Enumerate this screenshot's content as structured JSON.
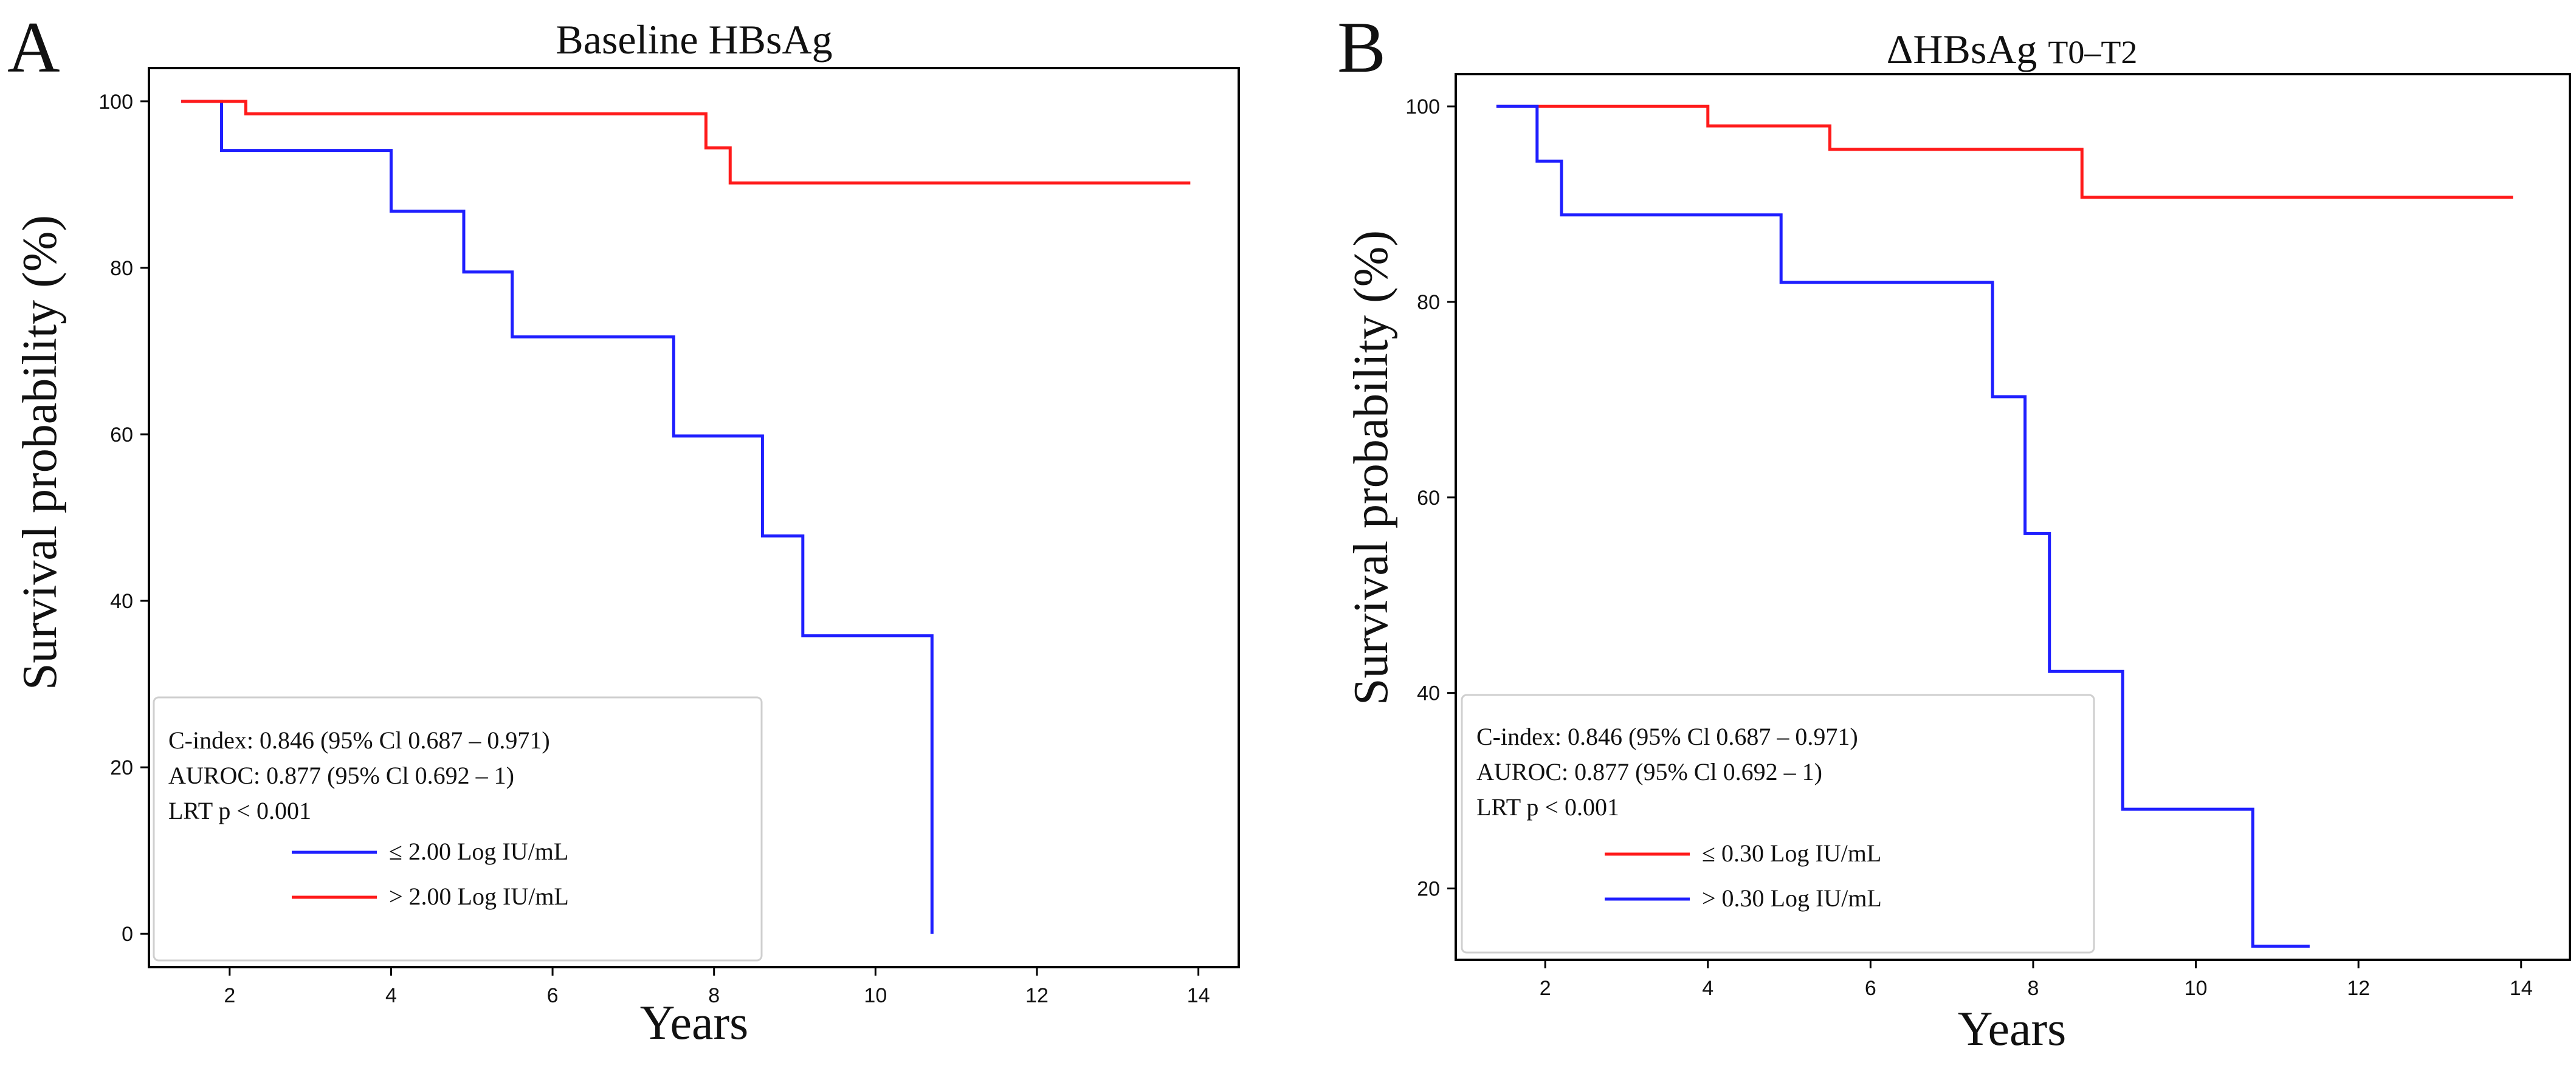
{
  "chart_data": [
    {
      "panel": "A",
      "type": "line",
      "step": true,
      "title": "Baseline HBsAg",
      "title_sub": "",
      "xlabel": "Years",
      "ylabel": "Survival probability (%)",
      "xlim": [
        1.0,
        14.5
      ],
      "ylim": [
        -4,
        104
      ],
      "xticks": [
        2,
        4,
        6,
        8,
        10,
        12,
        14
      ],
      "yticks": [
        0,
        20,
        40,
        60,
        80,
        100
      ],
      "grid": false,
      "legend_placement": "bottom-left",
      "stats": [
        "C-index: 0.846 (95% Cl 0.687 – 0.971)",
        "AUROC: 0.877 (95% Cl 0.692 – 1)",
        "LRT p < 0.001"
      ],
      "series": [
        {
          "name": "≤ 2.00 Log IU/mL",
          "color": "#1f1fff",
          "x": [
            1.4,
            1.9,
            4.0,
            4.9,
            5.5,
            7.5,
            8.6,
            9.1,
            10.7,
            10.7
          ],
          "y": [
            100,
            94.1,
            86.8,
            79.5,
            71.7,
            59.8,
            47.8,
            35.8,
            35.8,
            0
          ]
        },
        {
          "name": "> 2.00 Log IU/mL",
          "color": "#ff1a1a",
          "x": [
            1.4,
            2.2,
            7.9,
            8.2,
            13.9
          ],
          "y": [
            100,
            98.5,
            94.4,
            90.2,
            90.2
          ]
        }
      ]
    },
    {
      "panel": "B",
      "type": "line",
      "step": true,
      "title": "ΔHBsAg",
      "title_sub": "T0–T2",
      "xlabel": "Years",
      "ylabel": "Survival probability (%)",
      "xlim": [
        0.9,
        14.6
      ],
      "ylim": [
        12.7,
        103.3
      ],
      "xticks": [
        2,
        4,
        6,
        8,
        10,
        12,
        14
      ],
      "yticks": [
        20,
        40,
        60,
        80,
        100
      ],
      "grid": false,
      "legend_placement": "bottom-left",
      "stats": [
        "C-index: 0.846 (95% Cl 0.687 – 0.971)",
        "AUROC: 0.877 (95% Cl 0.692 – 1)",
        "LRT p < 0.001"
      ],
      "series": [
        {
          "name": "≤ 0.30 Log IU/mL",
          "color": "#ff1a1a",
          "x": [
            1.4,
            4.0,
            5.5,
            8.6,
            13.9
          ],
          "y": [
            100,
            98.0,
            95.6,
            90.7,
            90.7
          ]
        },
        {
          "name": "> 0.30 Log IU/mL",
          "color": "#1f1fff",
          "x": [
            1.4,
            1.9,
            2.2,
            4.9,
            7.5,
            7.9,
            8.2,
            9.1,
            10.7,
            11.4
          ],
          "y": [
            100,
            94.4,
            88.9,
            82.0,
            70.3,
            56.3,
            42.2,
            28.1,
            14.1,
            14.1
          ]
        }
      ]
    }
  ]
}
